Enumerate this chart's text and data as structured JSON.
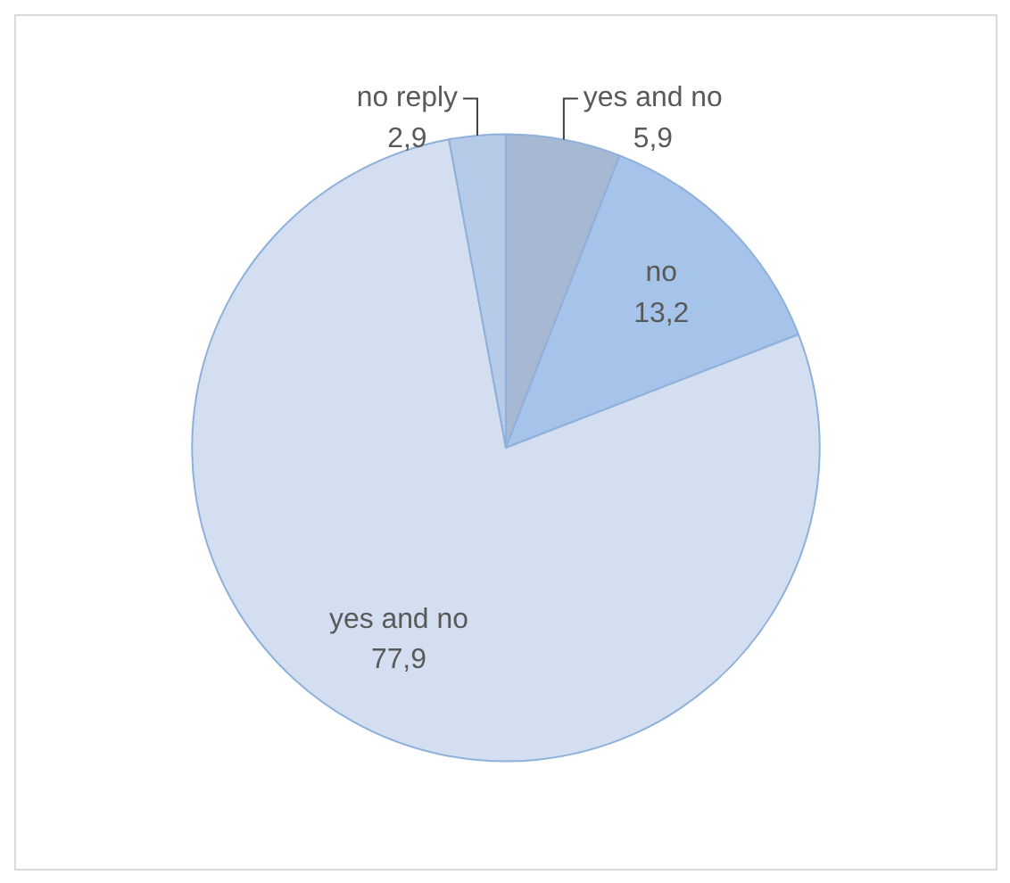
{
  "chart_data": {
    "type": "pie",
    "categories": [
      "yes and no",
      "no",
      "yes and no",
      "no reply"
    ],
    "values": [
      5.9,
      13.2,
      77.9,
      2.9
    ],
    "value_labels": [
      "5,9",
      "13,2",
      "77,9",
      "2,9"
    ],
    "colors": [
      "#a7b9d2",
      "#a6c3e9",
      "#d3dff1",
      "#b6cbe8"
    ],
    "legend": false
  }
}
